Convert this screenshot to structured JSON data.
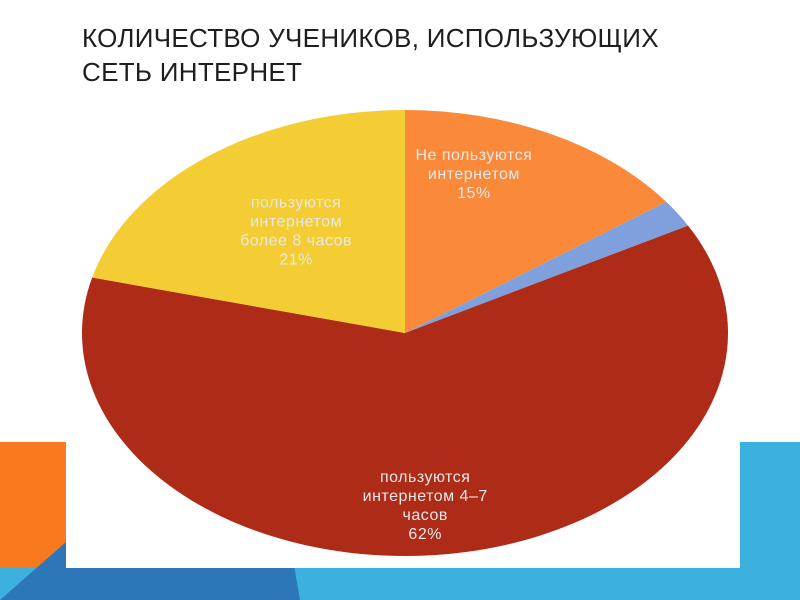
{
  "slide": {
    "title_lines": [
      "КОЛИЧЕСТВО УЧЕНИКОВ, ИСПОЛЬЗУЮЩИХ",
      "СЕТЬ ИНТЕРНЕТ"
    ]
  },
  "chart_data": {
    "type": "pie",
    "title": "",
    "slices": [
      {
        "label_lines": [
          "Не пользуются",
          "интернетом",
          "15%"
        ],
        "value": 15,
        "color": "#fa8a3a"
      },
      {
        "label_lines": [],
        "value": 2,
        "color": "#7fa0dc"
      },
      {
        "label_lines": [
          "пользуются",
          "интернетом 4–7",
          "часов",
          "62%"
        ],
        "value": 62,
        "color": "#ae2c17"
      },
      {
        "label_lines": [
          "пользуются",
          "интернетом",
          "более 8 часов",
          "21%"
        ],
        "value": 21,
        "color": "#f4cc33"
      }
    ],
    "label_color": "#e8e8e8"
  },
  "decor": {
    "colors": {
      "orange": "#f97a1e",
      "light_blue": "#3cb1df",
      "dark_blue": "#2d76b8"
    }
  }
}
